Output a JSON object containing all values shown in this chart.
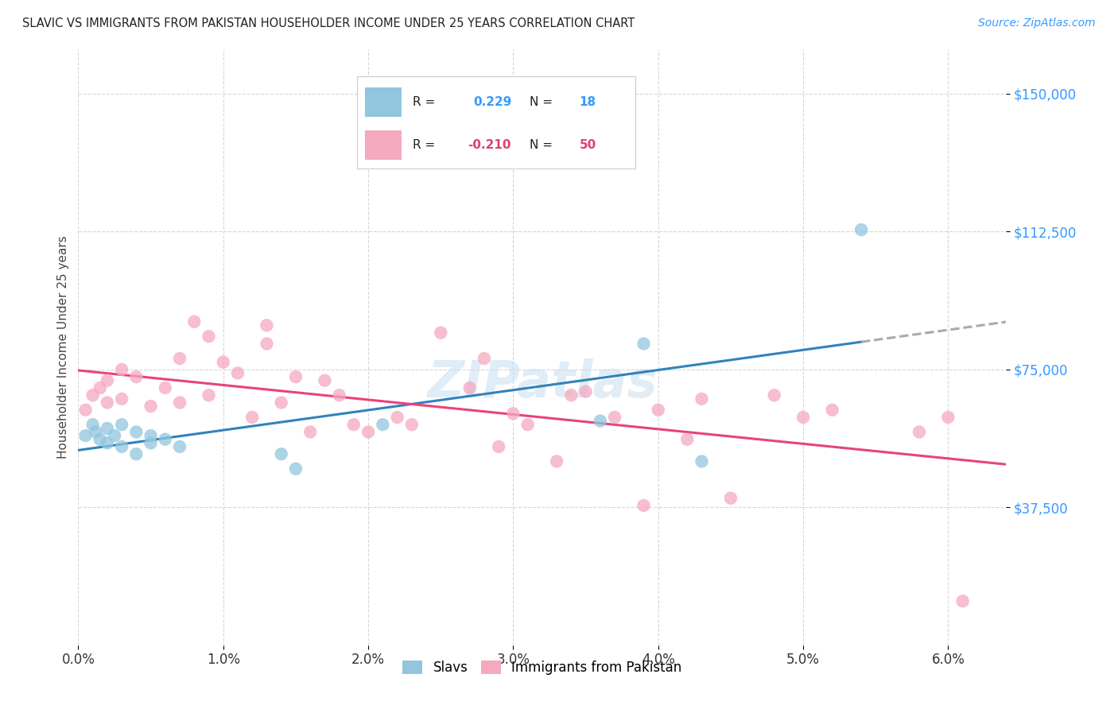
{
  "title": "SLAVIC VS IMMIGRANTS FROM PAKISTAN HOUSEHOLDER INCOME UNDER 25 YEARS CORRELATION CHART",
  "source": "Source: ZipAtlas.com",
  "ylabel": "Householder Income Under 25 years",
  "ytick_labels": [
    "$150,000",
    "$112,500",
    "$75,000",
    "$37,500"
  ],
  "ytick_values": [
    150000,
    112500,
    75000,
    37500
  ],
  "ymin": 0,
  "ymax": 162000,
  "xmin": 0.0,
  "xmax": 0.064,
  "legend_label_blue": "Slavs",
  "legend_label_pink": "Immigrants from Pakistan",
  "blue_color": "#92c5de",
  "pink_color": "#f4a9be",
  "trendline_blue_color": "#3182bd",
  "trendline_pink_color": "#e8437a",
  "trendline_dashed_color": "#aaaaaa",
  "slavs_x": [
    0.0005,
    0.001,
    0.0012,
    0.0015,
    0.002,
    0.002,
    0.0025,
    0.003,
    0.003,
    0.004,
    0.004,
    0.005,
    0.005,
    0.006,
    0.007,
    0.014,
    0.015,
    0.021,
    0.036,
    0.039,
    0.043,
    0.054
  ],
  "slavs_y": [
    57000,
    60000,
    58000,
    56000,
    59000,
    55000,
    57000,
    60000,
    54000,
    58000,
    52000,
    55000,
    57000,
    56000,
    54000,
    52000,
    48000,
    60000,
    61000,
    82000,
    50000,
    113000
  ],
  "pakistan_x": [
    0.0005,
    0.001,
    0.0015,
    0.002,
    0.002,
    0.003,
    0.003,
    0.004,
    0.005,
    0.006,
    0.007,
    0.007,
    0.008,
    0.009,
    0.009,
    0.01,
    0.011,
    0.012,
    0.013,
    0.013,
    0.014,
    0.015,
    0.016,
    0.017,
    0.018,
    0.019,
    0.02,
    0.022,
    0.023,
    0.025,
    0.027,
    0.028,
    0.029,
    0.03,
    0.031,
    0.033,
    0.034,
    0.035,
    0.037,
    0.039,
    0.04,
    0.042,
    0.043,
    0.045,
    0.048,
    0.05,
    0.052,
    0.058,
    0.06,
    0.061
  ],
  "pakistan_y": [
    64000,
    68000,
    70000,
    66000,
    72000,
    67000,
    75000,
    73000,
    65000,
    70000,
    78000,
    66000,
    88000,
    84000,
    68000,
    77000,
    74000,
    62000,
    87000,
    82000,
    66000,
    73000,
    58000,
    72000,
    68000,
    60000,
    58000,
    62000,
    60000,
    85000,
    70000,
    78000,
    54000,
    63000,
    60000,
    50000,
    68000,
    69000,
    62000,
    38000,
    64000,
    56000,
    67000,
    40000,
    68000,
    62000,
    64000,
    58000,
    62000,
    12000
  ]
}
